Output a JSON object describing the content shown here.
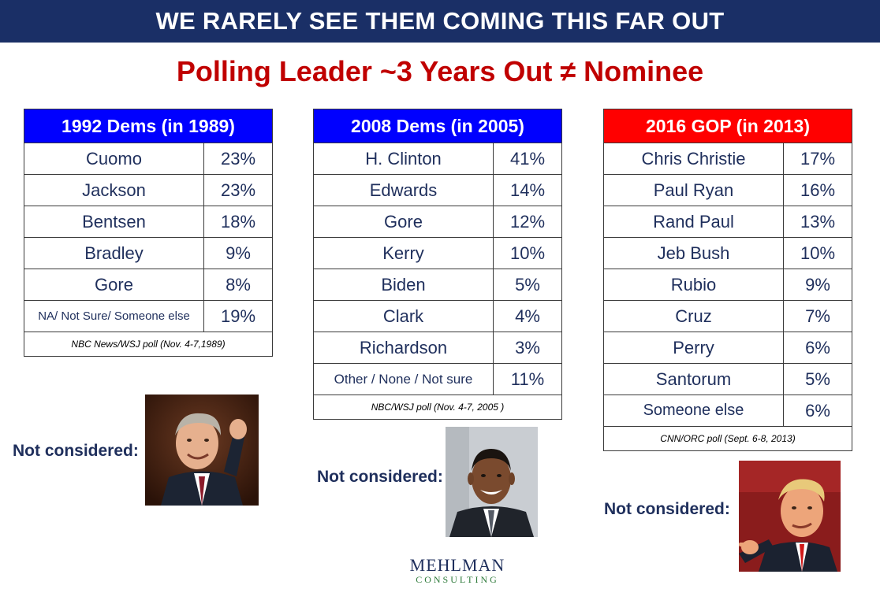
{
  "banner": "WE RARELY SEE THEM COMING THIS FAR OUT",
  "subtitle": "Polling Leader ~3 Years Out ≠ Nominee",
  "tables": [
    {
      "title": "1992 Dems (in 1989)",
      "header_color": "#0000ff",
      "rows": [
        {
          "name": "Cuomo",
          "pct": "23%"
        },
        {
          "name": "Jackson",
          "pct": "23%"
        },
        {
          "name": "Bentsen",
          "pct": "18%"
        },
        {
          "name": "Bradley",
          "pct": "9%"
        },
        {
          "name": "Gore",
          "pct": "8%"
        },
        {
          "name": "NA/ Not Sure/ Someone else",
          "pct": "19%"
        }
      ],
      "source": "NBC News/WSJ poll (Nov. 4-7,1989)",
      "not_considered": "Not considered:"
    },
    {
      "title": "2008 Dems (in 2005)",
      "header_color": "#0000ff",
      "rows": [
        {
          "name": "H. Clinton",
          "pct": "41%"
        },
        {
          "name": "Edwards",
          "pct": "14%"
        },
        {
          "name": "Gore",
          "pct": "12%"
        },
        {
          "name": "Kerry",
          "pct": "10%"
        },
        {
          "name": "Biden",
          "pct": "5%"
        },
        {
          "name": "Clark",
          "pct": "4%"
        },
        {
          "name": "Richardson",
          "pct": "3%"
        },
        {
          "name": "Other / None / Not sure",
          "pct": "11%"
        }
      ],
      "source": "NBC/WSJ poll (Nov. 4-7, 2005 )",
      "not_considered": "Not considered:"
    },
    {
      "title": "2016 GOP (in 2013)",
      "header_color": "#ff0000",
      "rows": [
        {
          "name": "Chris Christie",
          "pct": "17%"
        },
        {
          "name": "Paul Ryan",
          "pct": "16%"
        },
        {
          "name": "Rand Paul",
          "pct": "13%"
        },
        {
          "name": "Jeb Bush",
          "pct": "10%"
        },
        {
          "name": "Rubio",
          "pct": "9%"
        },
        {
          "name": "Cruz",
          "pct": "7%"
        },
        {
          "name": "Perry",
          "pct": "6%"
        },
        {
          "name": "Santorum",
          "pct": "5%"
        },
        {
          "name": "Someone else",
          "pct": "6%"
        }
      ],
      "source": "CNN/ORC poll (Sept. 6-8, 2013)",
      "not_considered": "Not considered:"
    }
  ],
  "logo": {
    "line1": "MEHLMAN",
    "line2": "CONSULTING"
  }
}
